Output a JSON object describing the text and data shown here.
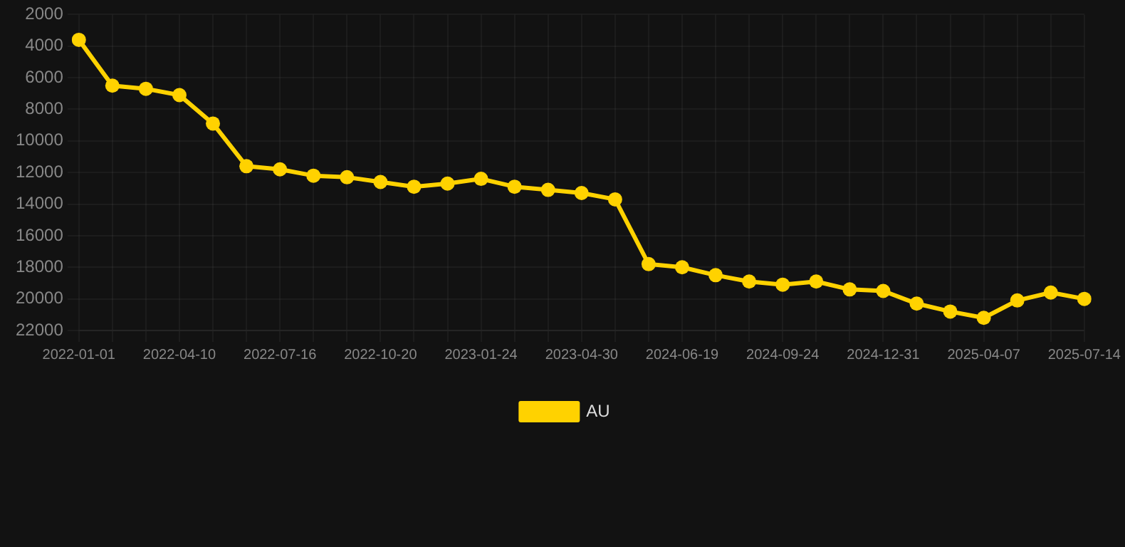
{
  "chart_data": {
    "type": "line",
    "categories": [
      "2022-01-01",
      null,
      null,
      "2022-04-10",
      null,
      null,
      "2022-07-16",
      null,
      null,
      "2022-10-20",
      null,
      null,
      "2023-01-24",
      null,
      null,
      "2023-04-30",
      null,
      null,
      "2024-06-19",
      null,
      null,
      "2024-09-24",
      null,
      null,
      "2024-12-31",
      null,
      null,
      "2025-04-07",
      null,
      null,
      "2025-07-14"
    ],
    "series": [
      {
        "name": "AU",
        "color": "#ffd200",
        "values": [
          3600,
          6500,
          6700,
          7100,
          8900,
          11600,
          11800,
          12200,
          12300,
          12600,
          12900,
          12700,
          12400,
          12900,
          13100,
          13300,
          13700,
          17800,
          18000,
          18500,
          18900,
          19100,
          18900,
          19400,
          19500,
          20300,
          20800,
          21200,
          20100,
          19600,
          20000
        ]
      }
    ],
    "ylim": [
      22000,
      2000
    ],
    "yticks": [
      2000,
      4000,
      6000,
      8000,
      10000,
      12000,
      14000,
      16000,
      18000,
      20000,
      22000
    ],
    "grid": true,
    "legend": "bottom",
    "marker": "circle",
    "line_style": "solid"
  }
}
